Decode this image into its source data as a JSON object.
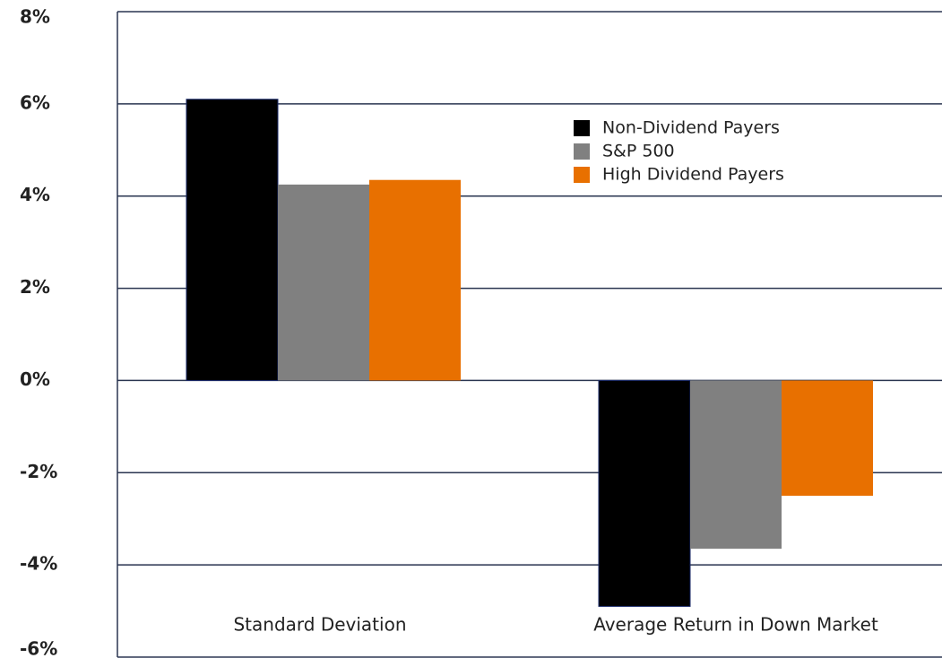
{
  "chart_data": {
    "type": "bar",
    "categories": [
      "Standard Deviation",
      "Average Return in Down Market"
    ],
    "series": [
      {
        "name": "Non-Dividend Payers",
        "color": "#000000",
        "values": [
          6.1,
          -4.9
        ]
      },
      {
        "name": "S&P 500",
        "color": "#808080",
        "values": [
          4.25,
          -3.65
        ]
      },
      {
        "name": "High Dividend Payers",
        "color": "#e87000",
        "values": [
          4.35,
          -2.5
        ]
      }
    ],
    "ylim": [
      -6,
      8
    ],
    "yticks": [
      {
        "value": -6,
        "label": "-6%"
      },
      {
        "value": -4,
        "label": "-4%"
      },
      {
        "value": -2,
        "label": "-2%"
      },
      {
        "value": 0,
        "label": "0%"
      },
      {
        "value": 2,
        "label": "2%"
      },
      {
        "value": 4,
        "label": "4%"
      },
      {
        "value": 6,
        "label": "6%"
      },
      {
        "value": 8,
        "label": "8%"
      }
    ],
    "grid": true,
    "legend": "top-right"
  }
}
